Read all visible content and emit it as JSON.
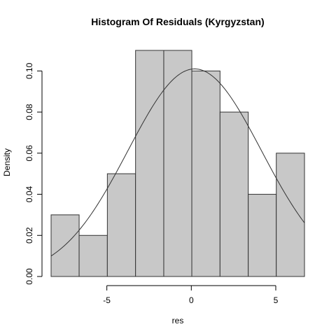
{
  "chart_data": {
    "type": "bar",
    "title": "Histogram Of Residuals (Kyrgyzstan)",
    "xlabel": "res",
    "ylabel": "Density",
    "xlim": [
      -8.3,
      6.7
    ],
    "ylim": [
      0,
      0.11
    ],
    "x_ticks": [
      -5,
      0,
      5
    ],
    "x_tick_labels": [
      "-5",
      "0",
      "5"
    ],
    "y_ticks": [
      0,
      0.02,
      0.04,
      0.06,
      0.08,
      0.1
    ],
    "y_tick_labels": [
      "0.00",
      "0.02",
      "0.04",
      "0.06",
      "0.08",
      "0.10"
    ],
    "bins": [
      {
        "from": -8.3,
        "to": -6.64,
        "density": 0.03
      },
      {
        "from": -6.64,
        "to": -4.97,
        "density": 0.02
      },
      {
        "from": -4.97,
        "to": -3.3,
        "density": 0.05
      },
      {
        "from": -3.3,
        "to": -1.63,
        "density": 0.11
      },
      {
        "from": -1.63,
        "to": 0.03,
        "density": 0.11
      },
      {
        "from": 0.03,
        "to": 1.7,
        "density": 0.1
      },
      {
        "from": 1.7,
        "to": 3.37,
        "density": 0.08
      },
      {
        "from": 3.37,
        "to": 5.03,
        "density": 0.04
      },
      {
        "from": 5.03,
        "to": 6.7,
        "density": 0.06
      }
    ],
    "normal_curve": {
      "mean": 0.2,
      "sd": 3.95
    },
    "bar_fill": "#c8c8c8",
    "bar_stroke": "#333333",
    "curve_color": "#333333",
    "grid": false,
    "legend": "none"
  }
}
